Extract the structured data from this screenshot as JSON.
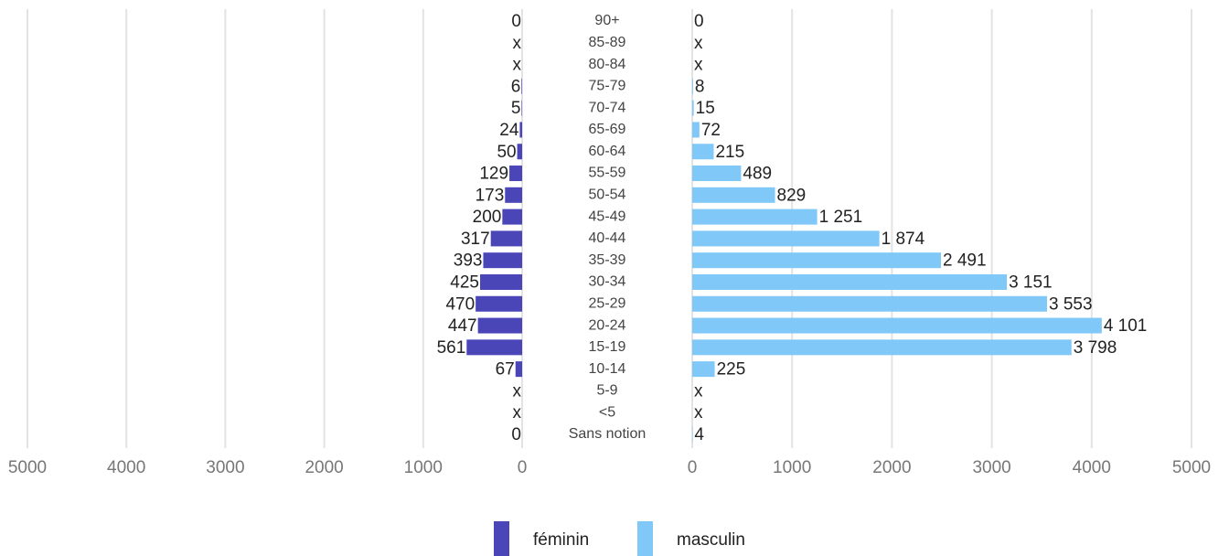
{
  "chart_data": {
    "type": "pyramid",
    "categories": [
      "90+",
      "85-89",
      "80-84",
      "75-79",
      "70-74",
      "65-69",
      "60-64",
      "55-59",
      "50-54",
      "45-49",
      "40-44",
      "35-39",
      "30-34",
      "25-29",
      "20-24",
      "15-19",
      "10-14",
      "5-9",
      "<5",
      "Sans notion"
    ],
    "series": [
      {
        "name": "féminin",
        "color": "#4a46b8",
        "values": [
          0,
          null,
          null,
          6,
          5,
          24,
          50,
          129,
          173,
          200,
          317,
          393,
          425,
          470,
          447,
          561,
          67,
          null,
          null,
          0
        ],
        "value_labels": [
          "0",
          "x",
          "x",
          "6",
          "5",
          "24",
          "50",
          "129",
          "173",
          "200",
          "317",
          "393",
          "425",
          "470",
          "447",
          "561",
          "67",
          "x",
          "x",
          "0"
        ]
      },
      {
        "name": "masculin",
        "color": "#80c8f8",
        "values": [
          0,
          null,
          null,
          8,
          15,
          72,
          215,
          489,
          829,
          1251,
          1874,
          2491,
          3151,
          3553,
          4101,
          3798,
          225,
          null,
          null,
          4
        ],
        "value_labels": [
          "0",
          "x",
          "x",
          "8",
          "15",
          "72",
          "215",
          "489",
          "829",
          "1 251",
          "1 874",
          "2 491",
          "3 151",
          "3 553",
          "4 101",
          "3 798",
          "225",
          "x",
          "x",
          "4"
        ]
      }
    ],
    "xlim": [
      0,
      5000
    ],
    "xticks": [
      0,
      1000,
      2000,
      3000,
      4000,
      5000
    ],
    "grid": true,
    "legend": "bottom"
  }
}
